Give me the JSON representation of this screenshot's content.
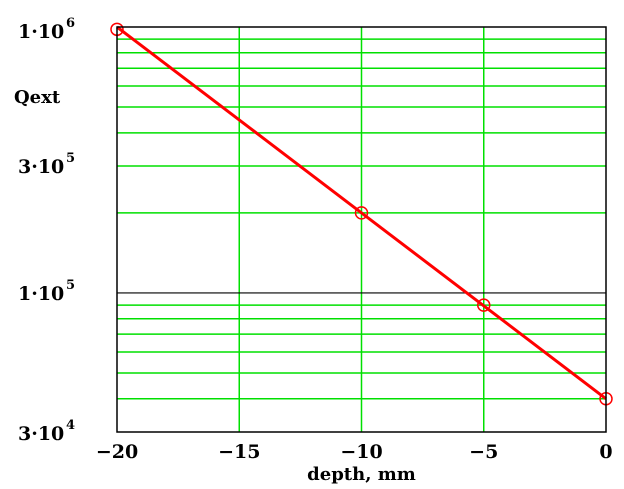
{
  "chart_data": {
    "type": "scatter",
    "title": "",
    "xlabel": "depth, mm",
    "ylabel": "Qext",
    "xlim": [
      -20,
      0
    ],
    "ylim": [
      30000,
      1000000
    ],
    "yscale": "log",
    "grid": true,
    "legend": "none",
    "x_ticks": [
      {
        "value": -20,
        "label": "−20"
      },
      {
        "value": -15,
        "label": "−15"
      },
      {
        "value": -10,
        "label": "−10"
      },
      {
        "value": -5,
        "label": "−5"
      },
      {
        "value": 0,
        "label": "0"
      }
    ],
    "y_ticks": [
      {
        "value": 1000000,
        "mantissa": "1·10",
        "exponent": "6"
      },
      {
        "value": 300000,
        "mantissa": "3·10",
        "exponent": "5"
      },
      {
        "value": 100000,
        "mantissa": "1·10",
        "exponent": "5"
      },
      {
        "value": 30000,
        "mantissa": "3·10",
        "exponent": "4"
      }
    ],
    "series": [
      {
        "x": [
          -20,
          -10,
          -5,
          0
        ],
        "y": [
          980000,
          200000,
          90000,
          40000
        ]
      }
    ],
    "fit_line": {
      "x": [
        -20,
        0
      ],
      "y": [
        1000000,
        40000
      ]
    },
    "colors": {
      "grid": "#00e000",
      "series": "#ff0000",
      "axis": "#000000",
      "background": "#ffffff"
    }
  }
}
